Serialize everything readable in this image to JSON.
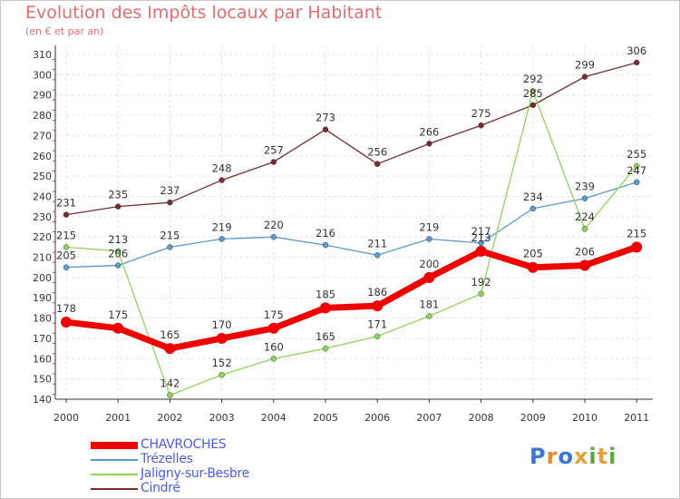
{
  "title": "Evolution des Impôts locaux par Habitant",
  "subtitle": "(en € et par an)",
  "brand": {
    "letters": [
      "P",
      "r",
      "o",
      "x",
      "i",
      "t",
      "i"
    ],
    "colors": [
      "#3a78c8",
      "#e88a2a",
      "#3a78c8",
      "#e8a03a",
      "#5aa83a",
      "#e8a03a",
      "#5aa83a"
    ]
  },
  "chart_data": {
    "type": "line",
    "title": "Evolution des Impôts locaux par Habitant",
    "subtitle": "(en € et par an)",
    "xlabel": "",
    "ylabel": "",
    "categories": [
      "2000",
      "2001",
      "2002",
      "2003",
      "2004",
      "2005",
      "2006",
      "2007",
      "2008",
      "2009",
      "2010",
      "2011"
    ],
    "ylim": [
      140,
      310
    ],
    "yticks": [
      "140",
      "150",
      "160",
      "170",
      "180",
      "190",
      "200",
      "210",
      "220",
      "230",
      "240",
      "250",
      "260",
      "270",
      "280",
      "290",
      "300",
      "310"
    ],
    "grid": true,
    "legend_position": "bottom-left",
    "series": [
      {
        "name": "Cindré",
        "color": "#7a2a2a",
        "emphasis": false,
        "values": [
          231,
          235,
          237,
          248,
          257,
          273,
          256,
          266,
          275,
          285,
          299,
          306
        ],
        "labels": [
          "231",
          "235",
          "237",
          "248",
          "257",
          "273",
          "256",
          "266",
          "275",
          "285",
          "299",
          "306"
        ]
      },
      {
        "name": "Trézelles",
        "color": "#5a9ad0",
        "emphasis": false,
        "values": [
          205,
          206,
          215,
          219,
          220,
          216,
          211,
          219,
          217,
          234,
          239,
          247
        ],
        "labels": [
          "205",
          "206",
          "215",
          "219",
          "220",
          "216",
          "211",
          "219",
          "217",
          "234",
          "239",
          "247"
        ]
      },
      {
        "name": "Jaligny-sur-Besbre",
        "color": "#8ed45a",
        "emphasis": false,
        "values": [
          215,
          213,
          142,
          152,
          160,
          165,
          171,
          181,
          192,
          292,
          224,
          255
        ],
        "labels": [
          "215",
          "213",
          "142",
          "152",
          "160",
          "165",
          "171",
          "181",
          "192",
          "292",
          "224",
          "255"
        ]
      },
      {
        "name": "CHAVROCHES",
        "color": "#ee0000",
        "emphasis": true,
        "values": [
          178,
          175,
          165,
          170,
          175,
          185,
          186,
          200,
          213,
          205,
          206,
          215
        ],
        "labels": [
          "178",
          "175",
          "165",
          "170",
          "175",
          "185",
          "186",
          "200",
          "213",
          "205",
          "206",
          "215"
        ]
      }
    ]
  },
  "legend": {
    "items": [
      {
        "label": "CHAVROCHES",
        "color": "#ee0000"
      },
      {
        "label": "Trézelles",
        "color": "#5a9ad0"
      },
      {
        "label": "Jaligny-sur-Besbre",
        "color": "#8ed45a"
      },
      {
        "label": "Cindré",
        "color": "#7a2a2a"
      }
    ]
  }
}
